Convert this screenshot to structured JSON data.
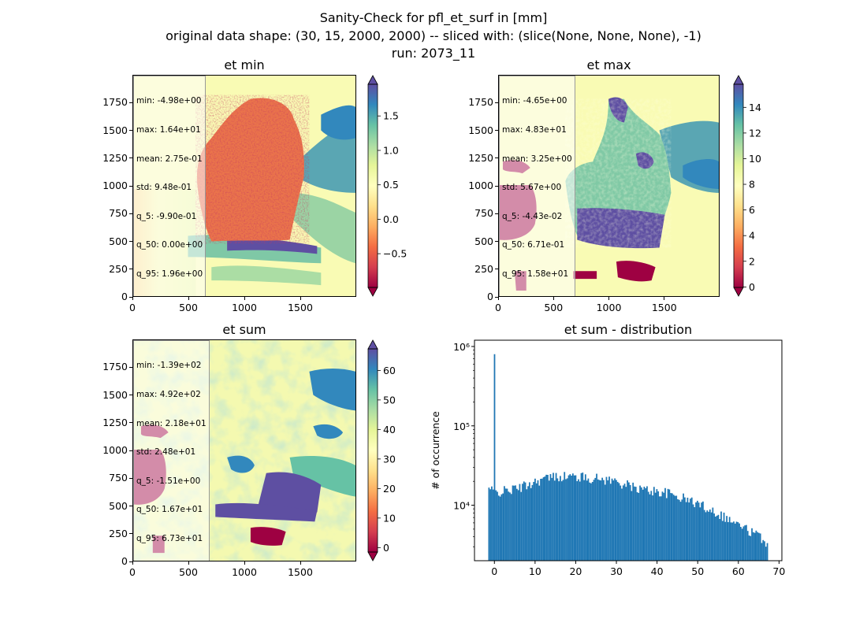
{
  "suptitle": {
    "line1": "Sanity-Check for pfl_et_surf in [mm]",
    "line2": "original data shape: (30, 15, 2000, 2000) -- sliced with: (slice(None, None, None), -1)",
    "line3": "run: 2073_11"
  },
  "colors": {
    "spectral_low": "#9e0142",
    "spectral_mid": "#ffffbf",
    "spectral_high": "#5e4fa2",
    "hist_bar": "#1f77b4"
  },
  "chart_data": [
    {
      "type": "heatmap",
      "title": "et min",
      "colormap": "Spectral",
      "xticks": [
        "0",
        "500",
        "1000",
        "1500"
      ],
      "yticks": [
        "0",
        "250",
        "500",
        "750",
        "1000",
        "1250",
        "1500",
        "1750"
      ],
      "xlim": [
        0,
        2000
      ],
      "ylim": [
        0,
        2000
      ],
      "colorbar": {
        "ticks": [
          "−0.5",
          "0.0",
          "0.5",
          "1.0",
          "1.5"
        ],
        "tick_values": [
          -0.5,
          0.0,
          0.5,
          1.0,
          1.5
        ],
        "range": [
          -0.99,
          1.96
        ],
        "extend": "both"
      },
      "stats": [
        "min: -4.98e+00",
        "max: 1.64e+01",
        "mean: 2.75e-01",
        "std: 9.48e-01",
        "q_5: -9.90e-01",
        "q_50: 0.00e+00",
        "q_95: 1.96e+00"
      ]
    },
    {
      "type": "heatmap",
      "title": "et max",
      "colormap": "Spectral",
      "xticks": [
        "0",
        "500",
        "1000",
        "1500"
      ],
      "yticks": [
        "0",
        "250",
        "500",
        "750",
        "1000",
        "1250",
        "1500",
        "1750"
      ],
      "xlim": [
        0,
        2000
      ],
      "ylim": [
        0,
        2000
      ],
      "colorbar": {
        "ticks": [
          "0",
          "2",
          "4",
          "6",
          "8",
          "10",
          "12",
          "14"
        ],
        "tick_values": [
          0,
          2,
          4,
          6,
          8,
          10,
          12,
          14
        ],
        "range": [
          -0.04,
          15.8
        ],
        "extend": "both"
      },
      "stats": [
        "min: -4.65e+00",
        "max: 4.83e+01",
        "mean: 3.25e+00",
        "std: 5.67e+00",
        "q_5: -4.43e-02",
        "q_50: 6.71e-01",
        "q_95: 1.58e+01"
      ]
    },
    {
      "type": "heatmap",
      "title": "et sum",
      "colormap": "Spectral",
      "xticks": [
        "0",
        "500",
        "1000",
        "1500"
      ],
      "yticks": [
        "0",
        "250",
        "500",
        "750",
        "1000",
        "1250",
        "1500",
        "1750"
      ],
      "xlim": [
        0,
        2000
      ],
      "ylim": [
        0,
        2000
      ],
      "colorbar": {
        "ticks": [
          "0",
          "10",
          "20",
          "30",
          "40",
          "50",
          "60"
        ],
        "tick_values": [
          0,
          10,
          20,
          30,
          40,
          50,
          60
        ],
        "range": [
          -1.51,
          67.3
        ],
        "extend": "both"
      },
      "stats": [
        "min: -1.39e+02",
        "max: 4.92e+02",
        "mean: 2.18e+01",
        "std: 2.48e+01",
        "q_5: -1.51e+00",
        "q_50: 1.67e+01",
        "q_95: 6.73e+01"
      ]
    },
    {
      "type": "bar",
      "title": "et sum - distribution",
      "ylabel": "# of occurrence",
      "xlabel": "",
      "yscale": "log",
      "xlim": [
        -4.9,
        70.7
      ],
      "ylim": [
        2000,
        1200000
      ],
      "xticks": [
        "0",
        "10",
        "20",
        "30",
        "40",
        "50",
        "60",
        "70"
      ],
      "xtick_values": [
        0,
        10,
        20,
        30,
        40,
        50,
        60,
        70
      ],
      "yticks": [
        "10⁴",
        "10⁵",
        "10⁶"
      ],
      "ytick_values": [
        10000,
        100000,
        1000000
      ],
      "bin_range": [
        -1.51,
        67.3
      ],
      "bins": 200,
      "annotations": {
        "spike_x": 0,
        "spike_y": 800000
      },
      "envelope_x": [
        -1.5,
        0,
        2,
        5,
        8,
        10,
        12,
        14,
        16,
        18,
        20,
        22,
        24,
        26,
        28,
        30,
        32,
        34,
        36,
        38,
        40,
        42,
        44,
        46,
        48,
        50,
        52,
        54,
        56,
        58,
        60,
        62,
        64,
        66,
        67.3
      ],
      "envelope_y": [
        16500,
        14500,
        15000,
        16000,
        18000,
        20000,
        21500,
        22500,
        23500,
        23000,
        23000,
        22500,
        22000,
        21500,
        21000,
        20000,
        18500,
        17000,
        16000,
        15500,
        15000,
        14500,
        13500,
        12500,
        11500,
        10500,
        9500,
        8500,
        7500,
        6500,
        5700,
        5000,
        4400,
        3800,
        3300
      ]
    }
  ]
}
